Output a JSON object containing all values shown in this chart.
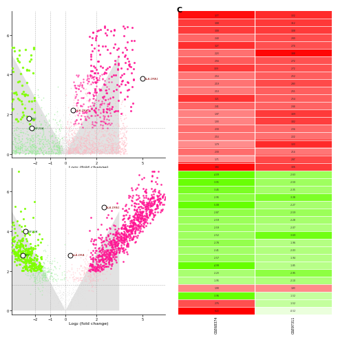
{
  "heatmap_gse68374": [
    3.77,
    3.08,
    3.08,
    2.4,
    3.27,
    2.23,
    2.56,
    3.09,
    2.14,
    2.19,
    2.1,
    3.21,
    2.41,
    1.97,
    1.93,
    2.3,
    2.14,
    1.79,
    2.3,
    1.71,
    3.84,
    -4.09,
    -3.91,
    -3.45,
    -2.95,
    -5.08,
    -2.87,
    -2.59,
    -2.59,
    -2.52,
    -2.78,
    -2.41,
    -2.57,
    -4.99,
    -2.23,
    -1.95,
    1.9,
    -3.96,
    2.76,
    6.22
  ],
  "heatmap_gse97311": [
    3.32,
    3.12,
    3.08,
    2.8,
    2.74,
    3.88,
    2.72,
    2.72,
    2.52,
    2.83,
    2.51,
    2.54,
    2.44,
    3.09,
    3.02,
    2.34,
    2.22,
    3.33,
    2.14,
    2.87,
    3.06,
    -2.63,
    -2.5,
    -2.35,
    -3.38,
    -2.27,
    -2.59,
    -2.28,
    -2.07,
    -3.69,
    -1.96,
    -2.03,
    -1.94,
    -1.85,
    -2.95,
    -2.1,
    1.83,
    -1.52,
    -1.52,
    -0.52
  ],
  "xlabel": "Log₂ (fold change)",
  "panel_c_label": "C",
  "col_labels": [
    "GSE68374",
    "GSE97311"
  ],
  "background": "#ffffff",
  "hot_pink": "#FF1493",
  "light_pink": "#FFB6C1",
  "bright_green": "#7FFF00",
  "light_green": "#90EE90",
  "gray_funnel": "#C0C0C0",
  "gray_ns": "#CCCCCC",
  "vol1_labeled": [
    [
      5.0,
      3.8,
      "HLA-DPA1",
      "pink"
    ],
    [
      0.5,
      2.2,
      "HLA-DRA",
      "pink"
    ],
    [
      -2.4,
      1.8,
      "MYC",
      "green"
    ],
    [
      -2.2,
      1.3,
      "KIF20A",
      "green"
    ]
  ],
  "vol2_labeled": [
    [
      2.5,
      5.2,
      "HLA-DPA1",
      "pink"
    ],
    [
      0.3,
      2.8,
      "HLA-DRA",
      "pink"
    ],
    [
      -2.6,
      4.0,
      "KIF20A",
      "green"
    ],
    [
      -2.8,
      2.8,
      "MYC",
      "green"
    ]
  ]
}
